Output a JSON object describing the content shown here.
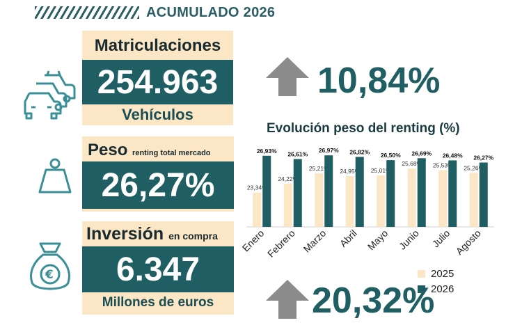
{
  "header": {
    "title": "ACUMULADO 2026"
  },
  "matriculaciones": {
    "title": "Matriculaciones",
    "value": "254.963",
    "unit": "Vehículos",
    "icon": "cars-icon"
  },
  "peso": {
    "title": "Peso",
    "subtitle": "renting total mercado",
    "value": "26,27%",
    "icon": "weight-icon"
  },
  "inversion": {
    "title": "Inversión",
    "subtitle": "en compra",
    "value": "6.347",
    "unit": "Millones de euros",
    "icon": "money-bag-icon"
  },
  "growth": {
    "registrations": "10,84%",
    "investment": "20,32%",
    "icon": "up-arrow-icon"
  },
  "colors": {
    "accent": "#1f5f63",
    "cream": "#fbe6c6",
    "bar2025": "#fbe6c6",
    "bar2026": "#1f5f63",
    "arrow": "#8c8c8c"
  },
  "chart_data": {
    "type": "bar",
    "title": "Evolución peso del renting (%)",
    "categories": [
      "Enero",
      "Febrero",
      "Marzo",
      "Abril",
      "Mayo",
      "Junio",
      "Julio",
      "Agosto"
    ],
    "series": [
      {
        "name": "2025",
        "values": [
          23.34,
          24.22,
          25.21,
          24.95,
          25.01,
          25.68,
          25.53,
          25.26
        ],
        "labels": [
          "23,34%",
          "24,22%",
          "25,21%",
          "24,95%",
          "25,01%",
          "25,68%",
          "25,53%",
          "25,26%"
        ]
      },
      {
        "name": "2026",
        "values": [
          26.93,
          26.61,
          26.97,
          26.82,
          26.5,
          26.69,
          26.48,
          26.27
        ],
        "labels": [
          "26,93%",
          "26,61%",
          "26,97%",
          "26,82%",
          "26,50%",
          "26,69%",
          "26,48%",
          "26,27%"
        ]
      }
    ],
    "ylim": [
      20,
      28
    ],
    "legend": "bottom-right",
    "grid": false
  }
}
